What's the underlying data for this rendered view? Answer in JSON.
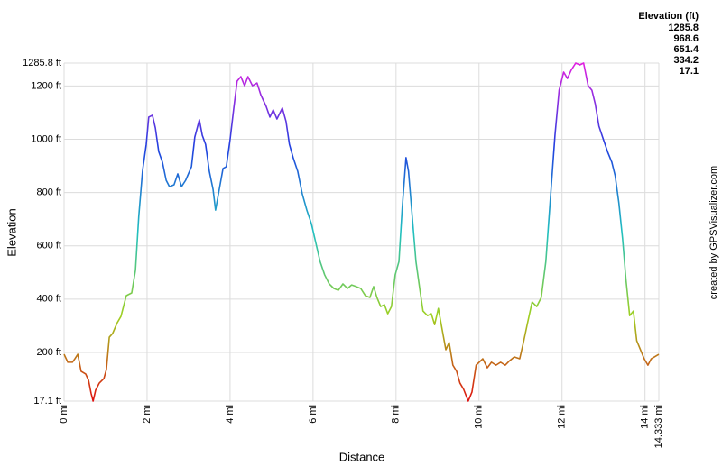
{
  "chart_data": {
    "type": "line",
    "x_label": "Distance",
    "y_label": "Elevation",
    "credit": "created by GPSVisualizer.com",
    "legend": {
      "title": "Elevation (ft)",
      "values": [
        1285.8,
        968.6,
        651.4,
        334.2,
        17.1
      ],
      "colors": [
        "#e020e0",
        "#2040e0",
        "#20c0c0",
        "#a0d020",
        "#e01010"
      ]
    },
    "x": [
      0,
      0.09,
      0.2,
      0.26,
      0.33,
      0.41,
      0.52,
      0.59,
      0.65,
      0.7,
      0.76,
      0.85,
      0.96,
      1.02,
      1.09,
      1.17,
      1.28,
      1.37,
      1.5,
      1.63,
      1.72,
      1.8,
      1.89,
      1.98,
      2.04,
      2.13,
      2.2,
      2.28,
      2.37,
      2.46,
      2.54,
      2.65,
      2.74,
      2.83,
      2.93,
      3.07,
      3.15,
      3.26,
      3.33,
      3.41,
      3.5,
      3.59,
      3.65,
      3.74,
      3.83,
      3.91,
      4.0,
      4.09,
      4.17,
      4.26,
      4.35,
      4.43,
      4.54,
      4.65,
      4.74,
      4.87,
      4.96,
      5.04,
      5.13,
      5.26,
      5.35,
      5.43,
      5.52,
      5.63,
      5.74,
      5.85,
      5.96,
      6.07,
      6.17,
      6.28,
      6.39,
      6.5,
      6.61,
      6.72,
      6.83,
      6.93,
      7.04,
      7.15,
      7.26,
      7.37,
      7.46,
      7.54,
      7.63,
      7.72,
      7.8,
      7.89,
      7.98,
      8.07,
      8.15,
      8.24,
      8.3,
      8.39,
      8.48,
      8.57,
      8.65,
      8.76,
      8.85,
      8.93,
      9.02,
      9.11,
      9.2,
      9.28,
      9.37,
      9.46,
      9.54,
      9.63,
      9.74,
      9.83,
      9.93,
      10.09,
      10.2,
      10.3,
      10.41,
      10.52,
      10.63,
      10.74,
      10.85,
      10.98,
      11.07,
      11.17,
      11.28,
      11.39,
      11.5,
      11.61,
      11.72,
      11.83,
      11.93,
      12.04,
      12.13,
      12.22,
      12.33,
      12.43,
      12.52,
      12.63,
      12.72,
      12.8,
      12.89,
      13.0,
      13.11,
      13.2,
      13.28,
      13.37,
      13.46,
      13.54,
      13.63,
      13.72,
      13.8,
      13.89,
      13.98,
      14.07,
      14.15,
      14.333
    ],
    "values": [
      193,
      163,
      163,
      176,
      193,
      129,
      119,
      95,
      47,
      17.1,
      58,
      85,
      102,
      136,
      257,
      271,
      311,
      335,
      413,
      423,
      508,
      711,
      880,
      981,
      1083,
      1090,
      1042,
      954,
      914,
      846,
      822,
      829,
      870,
      822,
      846,
      897,
      1008,
      1073,
      1015,
      981,
      880,
      812,
      734,
      812,
      890,
      897,
      998,
      1117,
      1218,
      1235,
      1201,
      1235,
      1201,
      1211,
      1167,
      1123,
      1083,
      1110,
      1076,
      1117,
      1066,
      981,
      931,
      880,
      795,
      734,
      683,
      609,
      541,
      491,
      457,
      440,
      433,
      457,
      440,
      453,
      447,
      440,
      413,
      406,
      447,
      406,
      372,
      379,
      345,
      372,
      491,
      541,
      744,
      931,
      880,
      711,
      541,
      440,
      355,
      338,
      345,
      304,
      365,
      287,
      210,
      237,
      152,
      129,
      85,
      61,
      17.1,
      51,
      152,
      176,
      142,
      163,
      152,
      163,
      152,
      169,
      183,
      176,
      237,
      311,
      389,
      372,
      406,
      541,
      778,
      1015,
      1184,
      1252,
      1228,
      1259,
      1285.8,
      1279,
      1285.8,
      1201,
      1184,
      1133,
      1049,
      998,
      948,
      914,
      863,
      761,
      626,
      474,
      338,
      355,
      244,
      210,
      176,
      152,
      176,
      193
    ],
    "xlim": [
      0,
      14.333
    ],
    "ylim": [
      17.1,
      1285.8
    ],
    "xticks": [
      {
        "value": 0,
        "label": "0 mi"
      },
      {
        "value": 2,
        "label": "2 mi"
      },
      {
        "value": 4,
        "label": "4 mi"
      },
      {
        "value": 6,
        "label": "6 mi"
      },
      {
        "value": 8,
        "label": "8 mi"
      },
      {
        "value": 10,
        "label": "10 mi"
      },
      {
        "value": 12,
        "label": "12 mi"
      },
      {
        "value": 14,
        "label": "14 mi"
      },
      {
        "value": 14.333,
        "label": "14.333 mi"
      }
    ],
    "yticks": [
      {
        "value": 17.1,
        "label": "17.1 ft"
      },
      {
        "value": 200,
        "label": "200 ft"
      },
      {
        "value": 400,
        "label": "400 ft"
      },
      {
        "value": 600,
        "label": "600 ft"
      },
      {
        "value": 800,
        "label": "800 ft"
      },
      {
        "value": 1000,
        "label": "1000 ft"
      },
      {
        "value": 1200,
        "label": "1200 ft"
      },
      {
        "value": 1285.8,
        "label": "1285.8 ft"
      }
    ],
    "grid": true
  }
}
